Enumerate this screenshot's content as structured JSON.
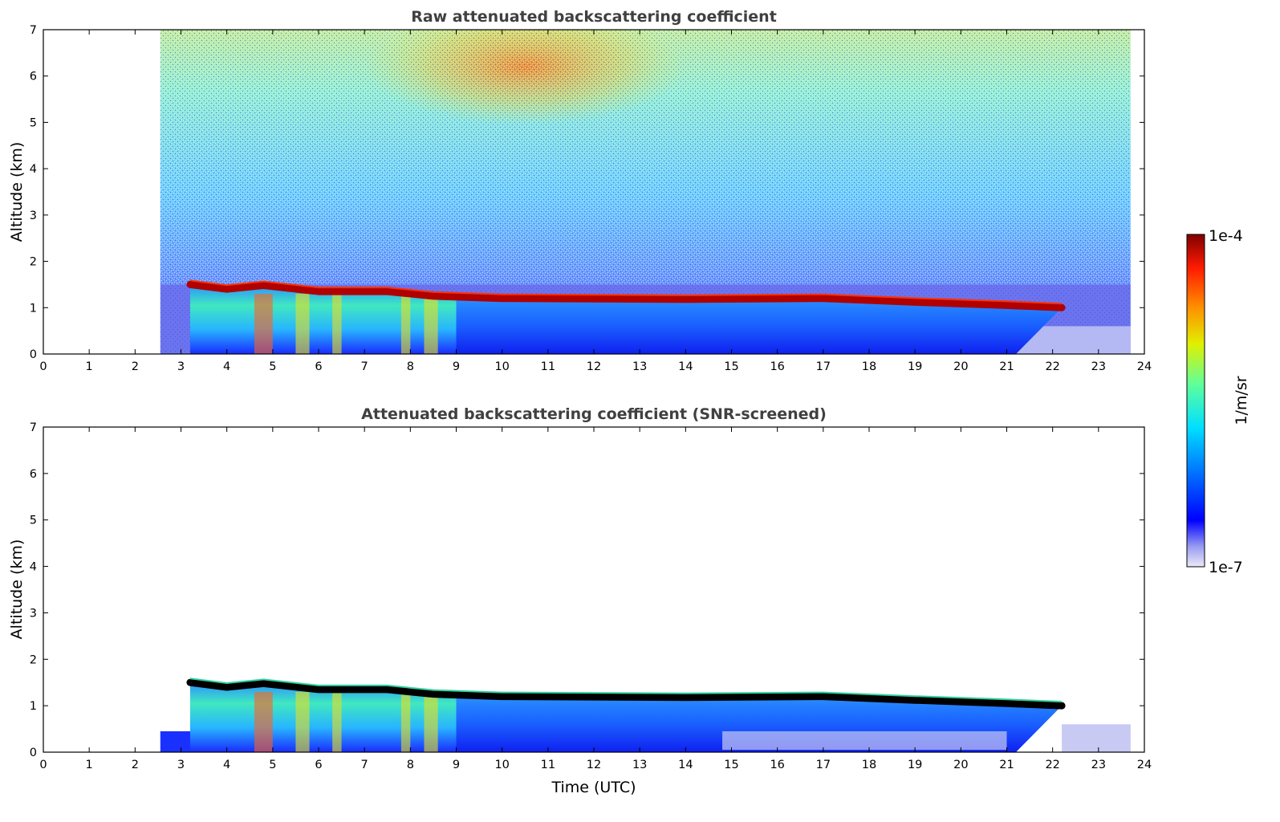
{
  "chart_data": [
    {
      "type": "heatmap",
      "title": "Raw attenuated backscattering coefficient",
      "xlabel": "",
      "ylabel": "Altitude (km)",
      "xlim": [
        0,
        24
      ],
      "ylim": [
        0,
        7
      ],
      "xticks": [
        "0",
        "1",
        "2",
        "3",
        "4",
        "5",
        "6",
        "7",
        "8",
        "9",
        "10",
        "11",
        "12",
        "13",
        "14",
        "15",
        "16",
        "17",
        "18",
        "19",
        "20",
        "21",
        "22",
        "23",
        "24"
      ],
      "yticks": [
        "0",
        "1",
        "2",
        "3",
        "4",
        "5",
        "6",
        "7"
      ],
      "data_start_time": 2.55,
      "data_end_time": 23.7,
      "cloud_layer_altitude_km": [
        {
          "t": 3.2,
          "alt": 1.5
        },
        {
          "t": 4.0,
          "alt": 1.4
        },
        {
          "t": 4.8,
          "alt": 1.48
        },
        {
          "t": 6.0,
          "alt": 1.35
        },
        {
          "t": 7.5,
          "alt": 1.35
        },
        {
          "t": 8.5,
          "alt": 1.25
        },
        {
          "t": 10.0,
          "alt": 1.2
        },
        {
          "t": 14.0,
          "alt": 1.18
        },
        {
          "t": 17.0,
          "alt": 1.2
        },
        {
          "t": 19.0,
          "alt": 1.12
        },
        {
          "t": 21.0,
          "alt": 1.05
        },
        {
          "t": 22.2,
          "alt": 1.0
        }
      ],
      "mixing_layer_end_time": 9.0
    },
    {
      "type": "heatmap",
      "title": "Attenuated backscattering coefficient (SNR-screened)",
      "xlabel": "Time (UTC)",
      "ylabel": "Altitude (km)",
      "xlim": [
        0,
        24
      ],
      "ylim": [
        0,
        7
      ],
      "xticks": [
        "0",
        "1",
        "2",
        "3",
        "4",
        "5",
        "6",
        "7",
        "8",
        "9",
        "10",
        "11",
        "12",
        "13",
        "14",
        "15",
        "16",
        "17",
        "18",
        "19",
        "20",
        "21",
        "22",
        "23",
        "24"
      ],
      "yticks": [
        "0",
        "1",
        "2",
        "3",
        "4",
        "5",
        "6",
        "7"
      ],
      "data_start_time": 2.55,
      "data_end_time": 23.7,
      "cloud_layer_altitude_km": [
        {
          "t": 3.2,
          "alt": 1.5
        },
        {
          "t": 4.0,
          "alt": 1.4
        },
        {
          "t": 4.8,
          "alt": 1.48
        },
        {
          "t": 6.0,
          "alt": 1.35
        },
        {
          "t": 7.5,
          "alt": 1.35
        },
        {
          "t": 8.5,
          "alt": 1.25
        },
        {
          "t": 10.0,
          "alt": 1.2
        },
        {
          "t": 14.0,
          "alt": 1.18
        },
        {
          "t": 17.0,
          "alt": 1.2
        },
        {
          "t": 19.0,
          "alt": 1.12
        },
        {
          "t": 21.0,
          "alt": 1.05
        },
        {
          "t": 22.2,
          "alt": 1.0
        }
      ]
    }
  ],
  "colorbar": {
    "label": "1/m/sr",
    "max_label": "1e-4",
    "min_label": "1e-7",
    "scale": "log",
    "range": [
      1e-07,
      0.0001
    ],
    "colormap": "jet"
  }
}
